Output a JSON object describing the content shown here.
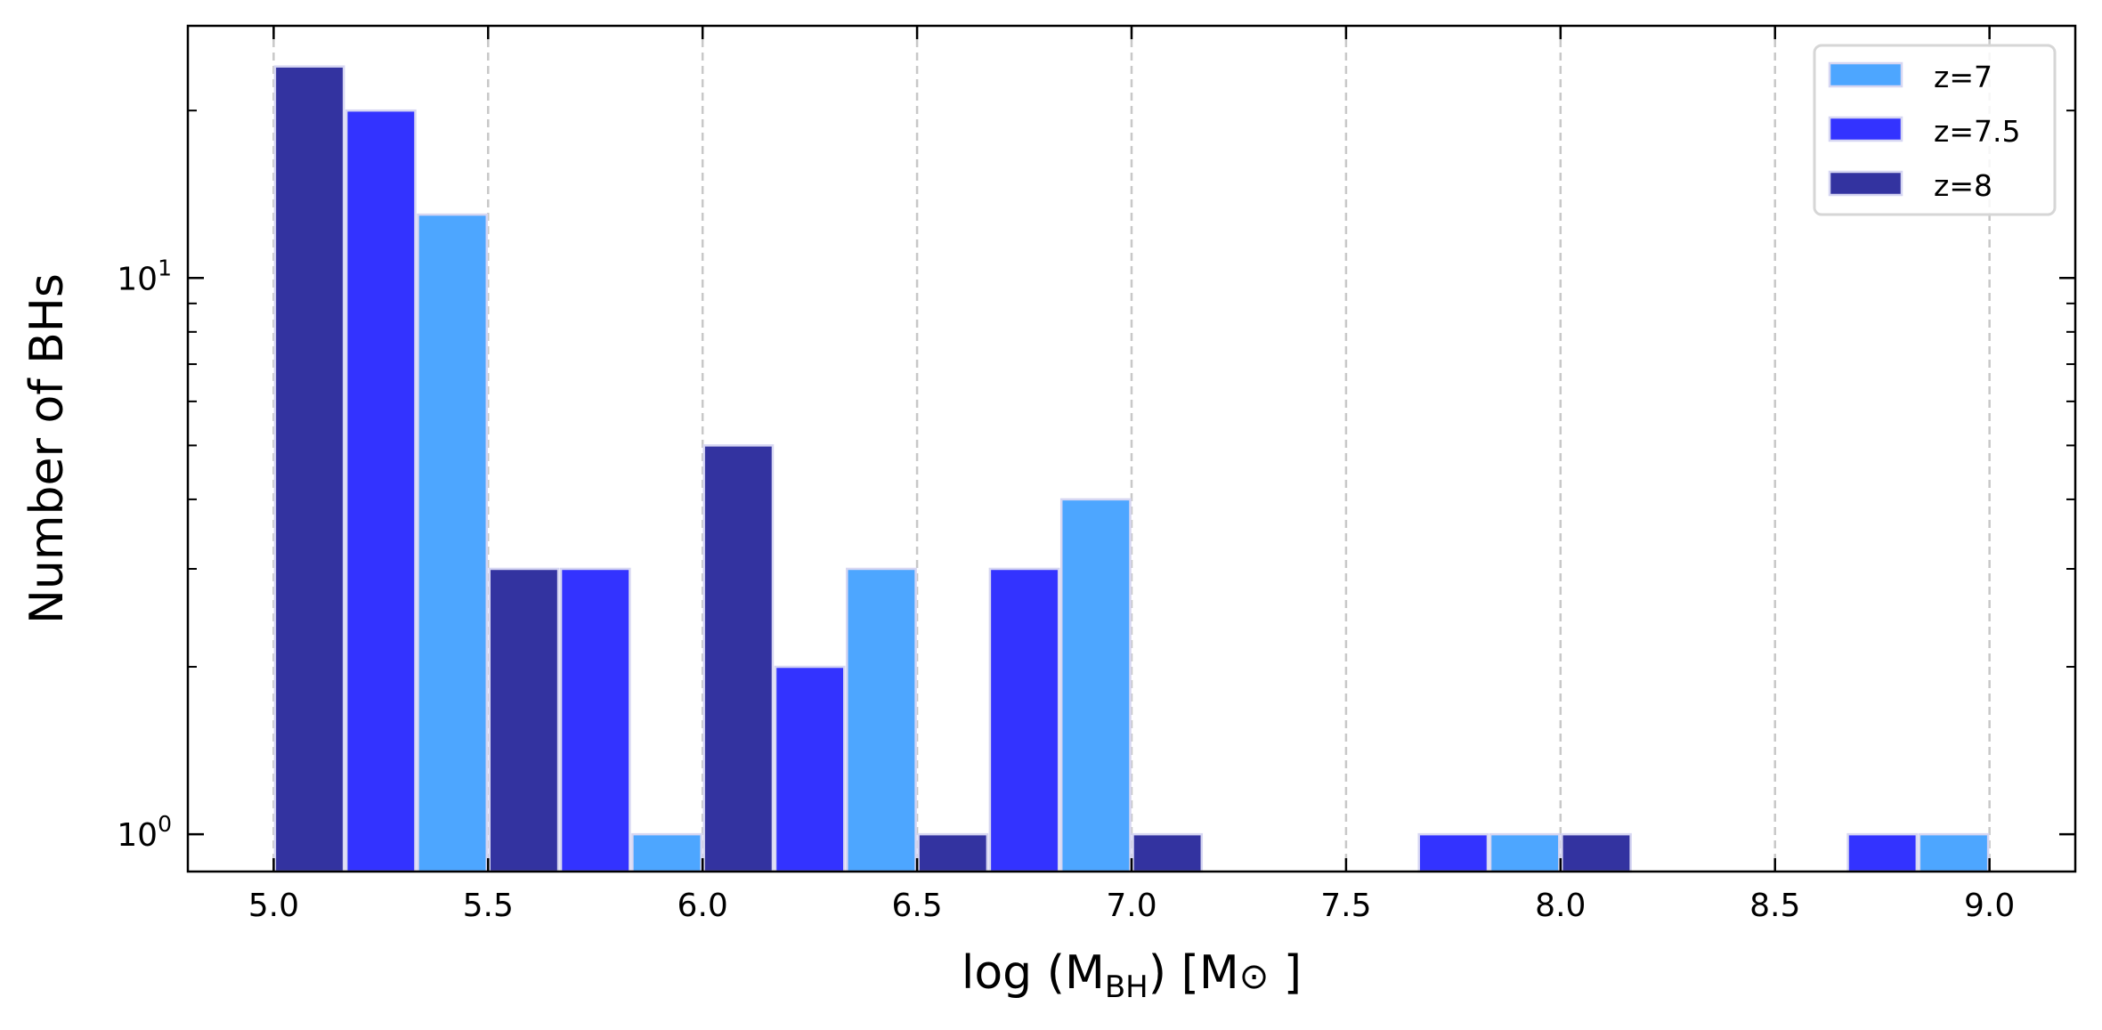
{
  "chart_data": {
    "type": "bar",
    "title": "",
    "xlabel": "log (M_BH) [M_sun]",
    "xlabel_parts": {
      "main": "log (M",
      "sub": "BH",
      "close": ") [M",
      "sun": "⊙",
      "end": " ]"
    },
    "ylabel": "Number of BHs",
    "xlim": [
      4.8,
      9.2
    ],
    "ylim": [
      0.857,
      28.4
    ],
    "yscale": "log",
    "grid": "vertical dashed",
    "legend_position": "top-right",
    "bin_edges": [
      5.0,
      5.5,
      6.0,
      6.5,
      7.0,
      7.5,
      8.0,
      8.5,
      9.0
    ],
    "x_ticks": [
      "5.0",
      "5.5",
      "6.0",
      "6.5",
      "7.0",
      "7.5",
      "8.0",
      "8.5",
      "9.0"
    ],
    "y_ticks": [
      {
        "value": 1,
        "base": "10",
        "exp": "0"
      },
      {
        "value": 10,
        "base": "10",
        "exp": "1"
      }
    ],
    "series": [
      {
        "name": "z=8",
        "color": "#3333a0",
        "values": [
          24,
          3,
          5,
          1,
          1,
          0,
          1,
          0
        ]
      },
      {
        "name": "z=7.5",
        "color": "#3333ff",
        "values": [
          20,
          3,
          2,
          3,
          0,
          1,
          0,
          1
        ]
      },
      {
        "name": "z=7",
        "color": "#4da6ff",
        "values": [
          13,
          1,
          3,
          4,
          0,
          1,
          0,
          1
        ]
      }
    ],
    "legend_order": [
      "z=7",
      "z=7.5",
      "z=8"
    ]
  }
}
